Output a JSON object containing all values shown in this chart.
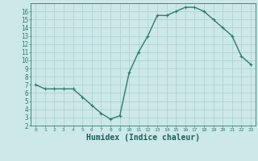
{
  "x": [
    0,
    1,
    2,
    3,
    4,
    5,
    6,
    7,
    8,
    9,
    10,
    11,
    12,
    13,
    14,
    15,
    16,
    17,
    18,
    19,
    20,
    21,
    22,
    23
  ],
  "y": [
    7.0,
    6.5,
    6.5,
    6.5,
    6.5,
    5.5,
    4.5,
    3.5,
    2.8,
    3.2,
    8.5,
    11.0,
    13.0,
    15.5,
    15.5,
    16.0,
    16.5,
    16.5,
    16.0,
    15.0,
    14.0,
    13.0,
    10.5,
    9.5
  ],
  "line_color": "#2e7d6e",
  "marker": "+",
  "marker_size": 3,
  "marker_color": "#2e7d6e",
  "background_color": "#cce8e8",
  "grid_color": "#aacfcf",
  "xlabel": "Humidex (Indice chaleur)",
  "xlim": [
    -0.5,
    23.5
  ],
  "ylim": [
    2,
    17
  ],
  "yticks": [
    2,
    3,
    4,
    5,
    6,
    7,
    8,
    9,
    10,
    11,
    12,
    13,
    14,
    15,
    16
  ],
  "xticks": [
    0,
    1,
    2,
    3,
    4,
    5,
    6,
    7,
    8,
    9,
    10,
    11,
    12,
    13,
    14,
    15,
    16,
    17,
    18,
    19,
    20,
    21,
    22,
    23
  ],
  "tick_color": "#2e7d6e",
  "label_color": "#1a5f5a",
  "font_size": 6,
  "xlabel_fontsize": 7,
  "linewidth": 1.0
}
